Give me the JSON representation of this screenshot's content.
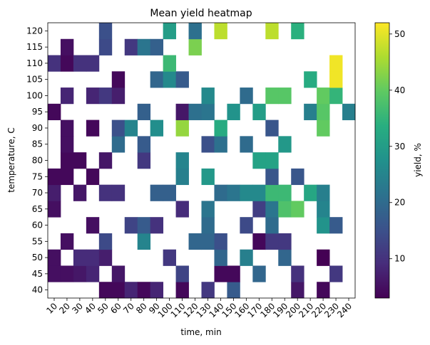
{
  "chart_data": {
    "type": "heatmap",
    "title": "Mean yield heatmap",
    "xlabel": "time, min",
    "ylabel": "temperature, C",
    "colorbar_label": "yield, %",
    "colormap": "viridis",
    "x_categories": [
      "10",
      "20",
      "30",
      "40",
      "50",
      "60",
      "70",
      "80",
      "90",
      "100",
      "110",
      "120",
      "130",
      "140",
      "150",
      "160",
      "170",
      "180",
      "190",
      "200",
      "210",
      "220",
      "230",
      "240"
    ],
    "y_categories": [
      "40",
      "45",
      "50",
      "55",
      "60",
      "65",
      "70",
      "75",
      "80",
      "85",
      "90",
      "95",
      "100",
      "105",
      "110",
      "115",
      "120"
    ],
    "value_range": [
      3,
      52
    ],
    "colorbar_ticks": [
      10,
      20,
      30,
      40,
      50
    ],
    "cells": [
      {
        "x": "50",
        "y": "40",
        "v": 4
      },
      {
        "x": "60",
        "y": "40",
        "v": 4
      },
      {
        "x": "70",
        "y": "40",
        "v": 8
      },
      {
        "x": "80",
        "y": "40",
        "v": 4
      },
      {
        "x": "90",
        "y": "40",
        "v": 8
      },
      {
        "x": "110",
        "y": "40",
        "v": 4
      },
      {
        "x": "130",
        "y": "40",
        "v": 11
      },
      {
        "x": "150",
        "y": "40",
        "v": 17
      },
      {
        "x": "200",
        "y": "40",
        "v": 6
      },
      {
        "x": "220",
        "y": "40",
        "v": 4
      },
      {
        "x": "10",
        "y": "45",
        "v": 5
      },
      {
        "x": "20",
        "y": "45",
        "v": 5
      },
      {
        "x": "30",
        "y": "45",
        "v": 6
      },
      {
        "x": "40",
        "y": "45",
        "v": 8
      },
      {
        "x": "60",
        "y": "45",
        "v": 6
      },
      {
        "x": "110",
        "y": "45",
        "v": 13
      },
      {
        "x": "140",
        "y": "45",
        "v": 4
      },
      {
        "x": "150",
        "y": "45",
        "v": 4
      },
      {
        "x": "170",
        "y": "45",
        "v": 19
      },
      {
        "x": "200",
        "y": "45",
        "v": 10
      },
      {
        "x": "230",
        "y": "45",
        "v": 11
      },
      {
        "x": "10",
        "y": "50",
        "v": 5
      },
      {
        "x": "30",
        "y": "50",
        "v": 9
      },
      {
        "x": "40",
        "y": "50",
        "v": 9
      },
      {
        "x": "50",
        "y": "50",
        "v": 7
      },
      {
        "x": "100",
        "y": "50",
        "v": 11
      },
      {
        "x": "140",
        "y": "50",
        "v": 19
      },
      {
        "x": "160",
        "y": "50",
        "v": 24
      },
      {
        "x": "190",
        "y": "50",
        "v": 19
      },
      {
        "x": "220",
        "y": "50",
        "v": 3
      },
      {
        "x": "20",
        "y": "55",
        "v": 5
      },
      {
        "x": "50",
        "y": "55",
        "v": 14
      },
      {
        "x": "80",
        "y": "55",
        "v": 25
      },
      {
        "x": "120",
        "y": "55",
        "v": 19
      },
      {
        "x": "130",
        "y": "55",
        "v": 19
      },
      {
        "x": "140",
        "y": "55",
        "v": 15
      },
      {
        "x": "170",
        "y": "55",
        "v": 4
      },
      {
        "x": "180",
        "y": "55",
        "v": 11
      },
      {
        "x": "190",
        "y": "55",
        "v": 11
      },
      {
        "x": "40",
        "y": "60",
        "v": 5
      },
      {
        "x": "70",
        "y": "60",
        "v": 13
      },
      {
        "x": "80",
        "y": "60",
        "v": 17
      },
      {
        "x": "90",
        "y": "60",
        "v": 10
      },
      {
        "x": "130",
        "y": "60",
        "v": 20
      },
      {
        "x": "160",
        "y": "60",
        "v": 14
      },
      {
        "x": "180",
        "y": "60",
        "v": 20
      },
      {
        "x": "220",
        "y": "60",
        "v": 28
      },
      {
        "x": "230",
        "y": "60",
        "v": 17
      },
      {
        "x": "10",
        "y": "65",
        "v": 5
      },
      {
        "x": "110",
        "y": "65",
        "v": 9
      },
      {
        "x": "130",
        "y": "65",
        "v": 22
      },
      {
        "x": "170",
        "y": "65",
        "v": 12
      },
      {
        "x": "180",
        "y": "65",
        "v": 22
      },
      {
        "x": "190",
        "y": "65",
        "v": 38
      },
      {
        "x": "200",
        "y": "65",
        "v": 40
      },
      {
        "x": "220",
        "y": "65",
        "v": 25
      },
      {
        "x": "10",
        "y": "70",
        "v": 7
      },
      {
        "x": "30",
        "y": "70",
        "v": 6
      },
      {
        "x": "50",
        "y": "70",
        "v": 10
      },
      {
        "x": "60",
        "y": "70",
        "v": 10
      },
      {
        "x": "90",
        "y": "70",
        "v": 18
      },
      {
        "x": "100",
        "y": "70",
        "v": 18
      },
      {
        "x": "140",
        "y": "70",
        "v": 20
      },
      {
        "x": "150",
        "y": "70",
        "v": 22
      },
      {
        "x": "160",
        "y": "70",
        "v": 26
      },
      {
        "x": "170",
        "y": "70",
        "v": 26
      },
      {
        "x": "180",
        "y": "70",
        "v": 36
      },
      {
        "x": "190",
        "y": "70",
        "v": 36
      },
      {
        "x": "210",
        "y": "70",
        "v": 32
      },
      {
        "x": "220",
        "y": "70",
        "v": 24
      },
      {
        "x": "10",
        "y": "75",
        "v": 4
      },
      {
        "x": "20",
        "y": "75",
        "v": 4
      },
      {
        "x": "40",
        "y": "75",
        "v": 4
      },
      {
        "x": "110",
        "y": "75",
        "v": 24
      },
      {
        "x": "130",
        "y": "75",
        "v": 29
      },
      {
        "x": "180",
        "y": "75",
        "v": 16
      },
      {
        "x": "200",
        "y": "75",
        "v": 16
      },
      {
        "x": "20",
        "y": "80",
        "v": 4
      },
      {
        "x": "30",
        "y": "80",
        "v": 4
      },
      {
        "x": "50",
        "y": "80",
        "v": 6
      },
      {
        "x": "80",
        "y": "80",
        "v": 11
      },
      {
        "x": "110",
        "y": "80",
        "v": 25
      },
      {
        "x": "170",
        "y": "80",
        "v": 31
      },
      {
        "x": "180",
        "y": "80",
        "v": 31
      },
      {
        "x": "20",
        "y": "85",
        "v": 5
      },
      {
        "x": "60",
        "y": "85",
        "v": 20
      },
      {
        "x": "80",
        "y": "85",
        "v": 17
      },
      {
        "x": "130",
        "y": "85",
        "v": 15
      },
      {
        "x": "140",
        "y": "85",
        "v": 21
      },
      {
        "x": "160",
        "y": "85",
        "v": 20
      },
      {
        "x": "190",
        "y": "85",
        "v": 29
      },
      {
        "x": "20",
        "y": "90",
        "v": 5
      },
      {
        "x": "40",
        "y": "90",
        "v": 4
      },
      {
        "x": "60",
        "y": "90",
        "v": 15
      },
      {
        "x": "70",
        "y": "90",
        "v": 25
      },
      {
        "x": "90",
        "y": "90",
        "v": 27
      },
      {
        "x": "110",
        "y": "90",
        "v": 44
      },
      {
        "x": "140",
        "y": "90",
        "v": 33
      },
      {
        "x": "180",
        "y": "90",
        "v": 16
      },
      {
        "x": "220",
        "y": "90",
        "v": 40
      },
      {
        "x": "10",
        "y": "95",
        "v": 4
      },
      {
        "x": "80",
        "y": "95",
        "v": 18
      },
      {
        "x": "110",
        "y": "95",
        "v": 6
      },
      {
        "x": "120",
        "y": "95",
        "v": 21
      },
      {
        "x": "130",
        "y": "95",
        "v": 22
      },
      {
        "x": "150",
        "y": "95",
        "v": 28
      },
      {
        "x": "170",
        "y": "95",
        "v": 30
      },
      {
        "x": "210",
        "y": "95",
        "v": 24
      },
      {
        "x": "220",
        "y": "95",
        "v": 39
      },
      {
        "x": "240",
        "y": "95",
        "v": 24
      },
      {
        "x": "20",
        "y": "100",
        "v": 8
      },
      {
        "x": "40",
        "y": "100",
        "v": 8
      },
      {
        "x": "50",
        "y": "100",
        "v": 11
      },
      {
        "x": "60",
        "y": "100",
        "v": 7
      },
      {
        "x": "130",
        "y": "100",
        "v": 26
      },
      {
        "x": "160",
        "y": "100",
        "v": 20
      },
      {
        "x": "180",
        "y": "100",
        "v": 39
      },
      {
        "x": "190",
        "y": "100",
        "v": 39
      },
      {
        "x": "220",
        "y": "100",
        "v": 40
      },
      {
        "x": "230",
        "y": "100",
        "v": 35
      },
      {
        "x": "60",
        "y": "105",
        "v": 4
      },
      {
        "x": "90",
        "y": "105",
        "v": 19
      },
      {
        "x": "100",
        "y": "105",
        "v": 26
      },
      {
        "x": "110",
        "y": "105",
        "v": 17
      },
      {
        "x": "210",
        "y": "105",
        "v": 33
      },
      {
        "x": "230",
        "y": "105",
        "v": 51
      },
      {
        "x": "10",
        "y": "110",
        "v": 10
      },
      {
        "x": "20",
        "y": "110",
        "v": 4
      },
      {
        "x": "30",
        "y": "110",
        "v": 10
      },
      {
        "x": "40",
        "y": "110",
        "v": 10
      },
      {
        "x": "100",
        "y": "110",
        "v": 36
      },
      {
        "x": "230",
        "y": "110",
        "v": 51
      },
      {
        "x": "20",
        "y": "115",
        "v": 5
      },
      {
        "x": "50",
        "y": "115",
        "v": 14
      },
      {
        "x": "70",
        "y": "115",
        "v": 11
      },
      {
        "x": "80",
        "y": "115",
        "v": 22
      },
      {
        "x": "90",
        "y": "115",
        "v": 18
      },
      {
        "x": "120",
        "y": "115",
        "v": 42
      },
      {
        "x": "50",
        "y": "120",
        "v": 15
      },
      {
        "x": "100",
        "y": "120",
        "v": 30
      },
      {
        "x": "120",
        "y": "120",
        "v": 21
      },
      {
        "x": "140",
        "y": "120",
        "v": 47
      },
      {
        "x": "180",
        "y": "120",
        "v": 47
      },
      {
        "x": "200",
        "y": "120",
        "v": 34
      }
    ]
  }
}
